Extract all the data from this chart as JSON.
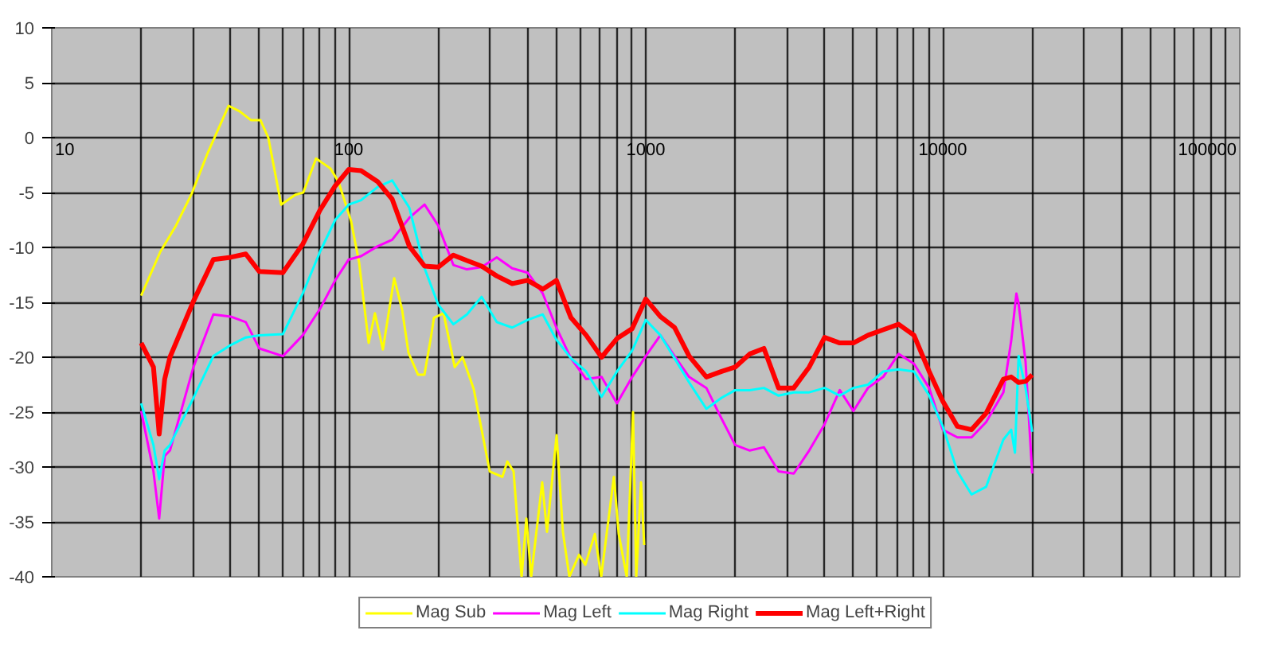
{
  "chart_data": {
    "type": "line",
    "log": "x",
    "grid": true,
    "legend": "bottom",
    "marker": "none",
    "line_style": "solid",
    "xlim": [
      10,
      100000
    ],
    "xticks": [
      10,
      100,
      1000,
      10000,
      100000
    ],
    "ylim": [
      -40,
      10
    ],
    "yticks": [
      -40,
      -35,
      -30,
      -25,
      -20,
      -15,
      -10,
      -5,
      0,
      5,
      10
    ],
    "series": [
      {
        "name": "Mag Sub",
        "color": "#ffff00",
        "x": [
          20,
          23.2,
          26.2,
          29.6,
          33.5,
          39.4,
          42.9,
          46.8,
          50.4,
          53.6,
          59.2,
          66.1,
          70.3,
          77.6,
          86.7,
          92.3,
          101.8,
          108.4,
          116.7,
          122.5,
          130.3,
          142.2,
          151.3,
          158.9,
          171.1,
          179.8,
          188.8,
          193.6,
          208.5,
          227.4,
          241.7,
          263.5,
          298.3,
          328.9,
          341.9,
          358.9,
          381.9,
          396.3,
          411.3,
          448,
          465,
          501,
          526,
          553,
          596,
          626,
          674,
          708,
          781,
          811,
          863,
          906,
          929,
          964,
          988
        ],
        "values": [
          -14.4,
          -10.4,
          -8,
          -5.1,
          -1.4,
          2.9,
          2.4,
          1.6,
          1.6,
          0,
          -6.1,
          -5.2,
          -5,
          -1.9,
          -2.8,
          -4,
          -7.6,
          -11.4,
          -18.7,
          -16,
          -19.3,
          -12.8,
          -15.7,
          -19.6,
          -21.6,
          -21.6,
          -18.3,
          -16.4,
          -16,
          -20.9,
          -20,
          -22.9,
          -30.4,
          -30.9,
          -29.5,
          -30.4,
          -40,
          -34.7,
          -40,
          -31.4,
          -35.9,
          -27.1,
          -35.9,
          -40,
          -38,
          -38.9,
          -36.1,
          -40,
          -30.9,
          -36.1,
          -40,
          -25,
          -40,
          -31.4,
          -37.1
        ]
      },
      {
        "name": "Mag Left",
        "color": "#ff00ff",
        "x": [
          20,
          22,
          23,
          24,
          25,
          30,
          35,
          40,
          45,
          50,
          60,
          70,
          80,
          90,
          100,
          110,
          125,
          140,
          160,
          180,
          200,
          225,
          250,
          280,
          315,
          355,
          400,
          450,
          500,
          560,
          630,
          710,
          800,
          900,
          1000,
          1120,
          1250,
          1400,
          1600,
          1800,
          2000,
          2240,
          2500,
          2800,
          3150,
          3550,
          4000,
          4500,
          5000,
          5600,
          6300,
          7100,
          8000,
          9000,
          10000,
          11200,
          12500,
          14000,
          16000,
          17000,
          17700,
          18000,
          19000,
          20000
        ],
        "values": [
          -24.9,
          -30.4,
          -34.7,
          -29,
          -28.5,
          -20.9,
          -16.1,
          -16.3,
          -16.8,
          -19.2,
          -19.9,
          -18,
          -15.6,
          -13,
          -11.1,
          -10.8,
          -9.9,
          -9.3,
          -7.3,
          -6.1,
          -8,
          -11.6,
          -12,
          -11.8,
          -10.9,
          -11.9,
          -12.3,
          -14.2,
          -17.3,
          -20.1,
          -22,
          -21.8,
          -24.2,
          -21.8,
          -19.9,
          -18,
          -19.9,
          -21.8,
          -22.8,
          -25.6,
          -28,
          -28.5,
          -28.2,
          -30.4,
          -30.6,
          -28.5,
          -26.1,
          -23,
          -24.9,
          -22.8,
          -21.8,
          -19.7,
          -20.6,
          -22.8,
          -26.6,
          -27.3,
          -27.3,
          -25.9,
          -23.2,
          -18.5,
          -14.2,
          -15.1,
          -20.4,
          -30.6
        ]
      },
      {
        "name": "Mag Right",
        "color": "#00ffff",
        "x": [
          20,
          22,
          23,
          24,
          25,
          30,
          35,
          40,
          45,
          50,
          60,
          70,
          80,
          90,
          100,
          110,
          125,
          140,
          160,
          180,
          200,
          225,
          250,
          280,
          315,
          355,
          400,
          450,
          500,
          560,
          630,
          710,
          800,
          900,
          1000,
          1120,
          1250,
          1400,
          1600,
          1800,
          2000,
          2240,
          2500,
          2800,
          3150,
          3550,
          4000,
          4500,
          5000,
          5600,
          6300,
          7100,
          8000,
          9000,
          10000,
          11200,
          12500,
          14000,
          16000,
          17000,
          17500,
          18000,
          19000,
          20000
        ],
        "values": [
          -24.2,
          -28,
          -31.1,
          -28.5,
          -28,
          -23.7,
          -19.9,
          -18.9,
          -18.2,
          -18,
          -17.9,
          -14.2,
          -10.4,
          -7.5,
          -6.1,
          -5.7,
          -4.5,
          -3.9,
          -6.4,
          -11.9,
          -15.2,
          -17,
          -16.1,
          -14.5,
          -16.8,
          -17.3,
          -16.6,
          -16.1,
          -18.4,
          -20.1,
          -21.3,
          -23.6,
          -21.3,
          -19.4,
          -16.6,
          -18,
          -20.1,
          -22.3,
          -24.7,
          -23.7,
          -23,
          -23,
          -22.8,
          -23.5,
          -23.2,
          -23.2,
          -22.8,
          -23.5,
          -22.8,
          -22.5,
          -21.3,
          -21.1,
          -21.3,
          -23.5,
          -26.3,
          -30.4,
          -32.5,
          -31.8,
          -27.5,
          -26.6,
          -28.7,
          -19.9,
          -22.8,
          -26.8
        ]
      },
      {
        "name": "Mag Left+Right",
        "color": "#ff0000",
        "x": [
          20,
          22,
          23,
          24,
          25,
          30,
          35,
          40,
          45,
          50,
          60,
          70,
          80,
          90,
          100,
          110,
          125,
          140,
          160,
          180,
          200,
          225,
          250,
          280,
          315,
          355,
          400,
          450,
          500,
          560,
          630,
          710,
          800,
          900,
          1000,
          1120,
          1250,
          1400,
          1600,
          1800,
          2000,
          2240,
          2500,
          2800,
          3150,
          3550,
          4000,
          4500,
          5000,
          5600,
          6300,
          7100,
          8000,
          9000,
          10000,
          11200,
          12500,
          14000,
          16000,
          17000,
          18000,
          19000,
          20000
        ],
        "values": [
          -18.7,
          -20.9,
          -27,
          -22,
          -20,
          -14.9,
          -11.1,
          -10.9,
          -10.6,
          -12.2,
          -12.3,
          -9.7,
          -6.6,
          -4.4,
          -2.9,
          -3,
          -4,
          -5.6,
          -9.9,
          -11.7,
          -11.8,
          -10.7,
          -11.2,
          -11.7,
          -12.6,
          -13.3,
          -13,
          -13.8,
          -13,
          -16.4,
          -18,
          -20,
          -18.3,
          -17.4,
          -14.7,
          -16.3,
          -17.3,
          -19.9,
          -21.8,
          -21.3,
          -20.9,
          -19.7,
          -19.2,
          -22.8,
          -22.8,
          -20.9,
          -18.2,
          -18.7,
          -18.7,
          -18,
          -17.5,
          -17,
          -18,
          -21.3,
          -24,
          -26.3,
          -26.6,
          -25.1,
          -22,
          -21.8,
          -22.3,
          -22.2,
          -21.6
        ]
      }
    ]
  }
}
